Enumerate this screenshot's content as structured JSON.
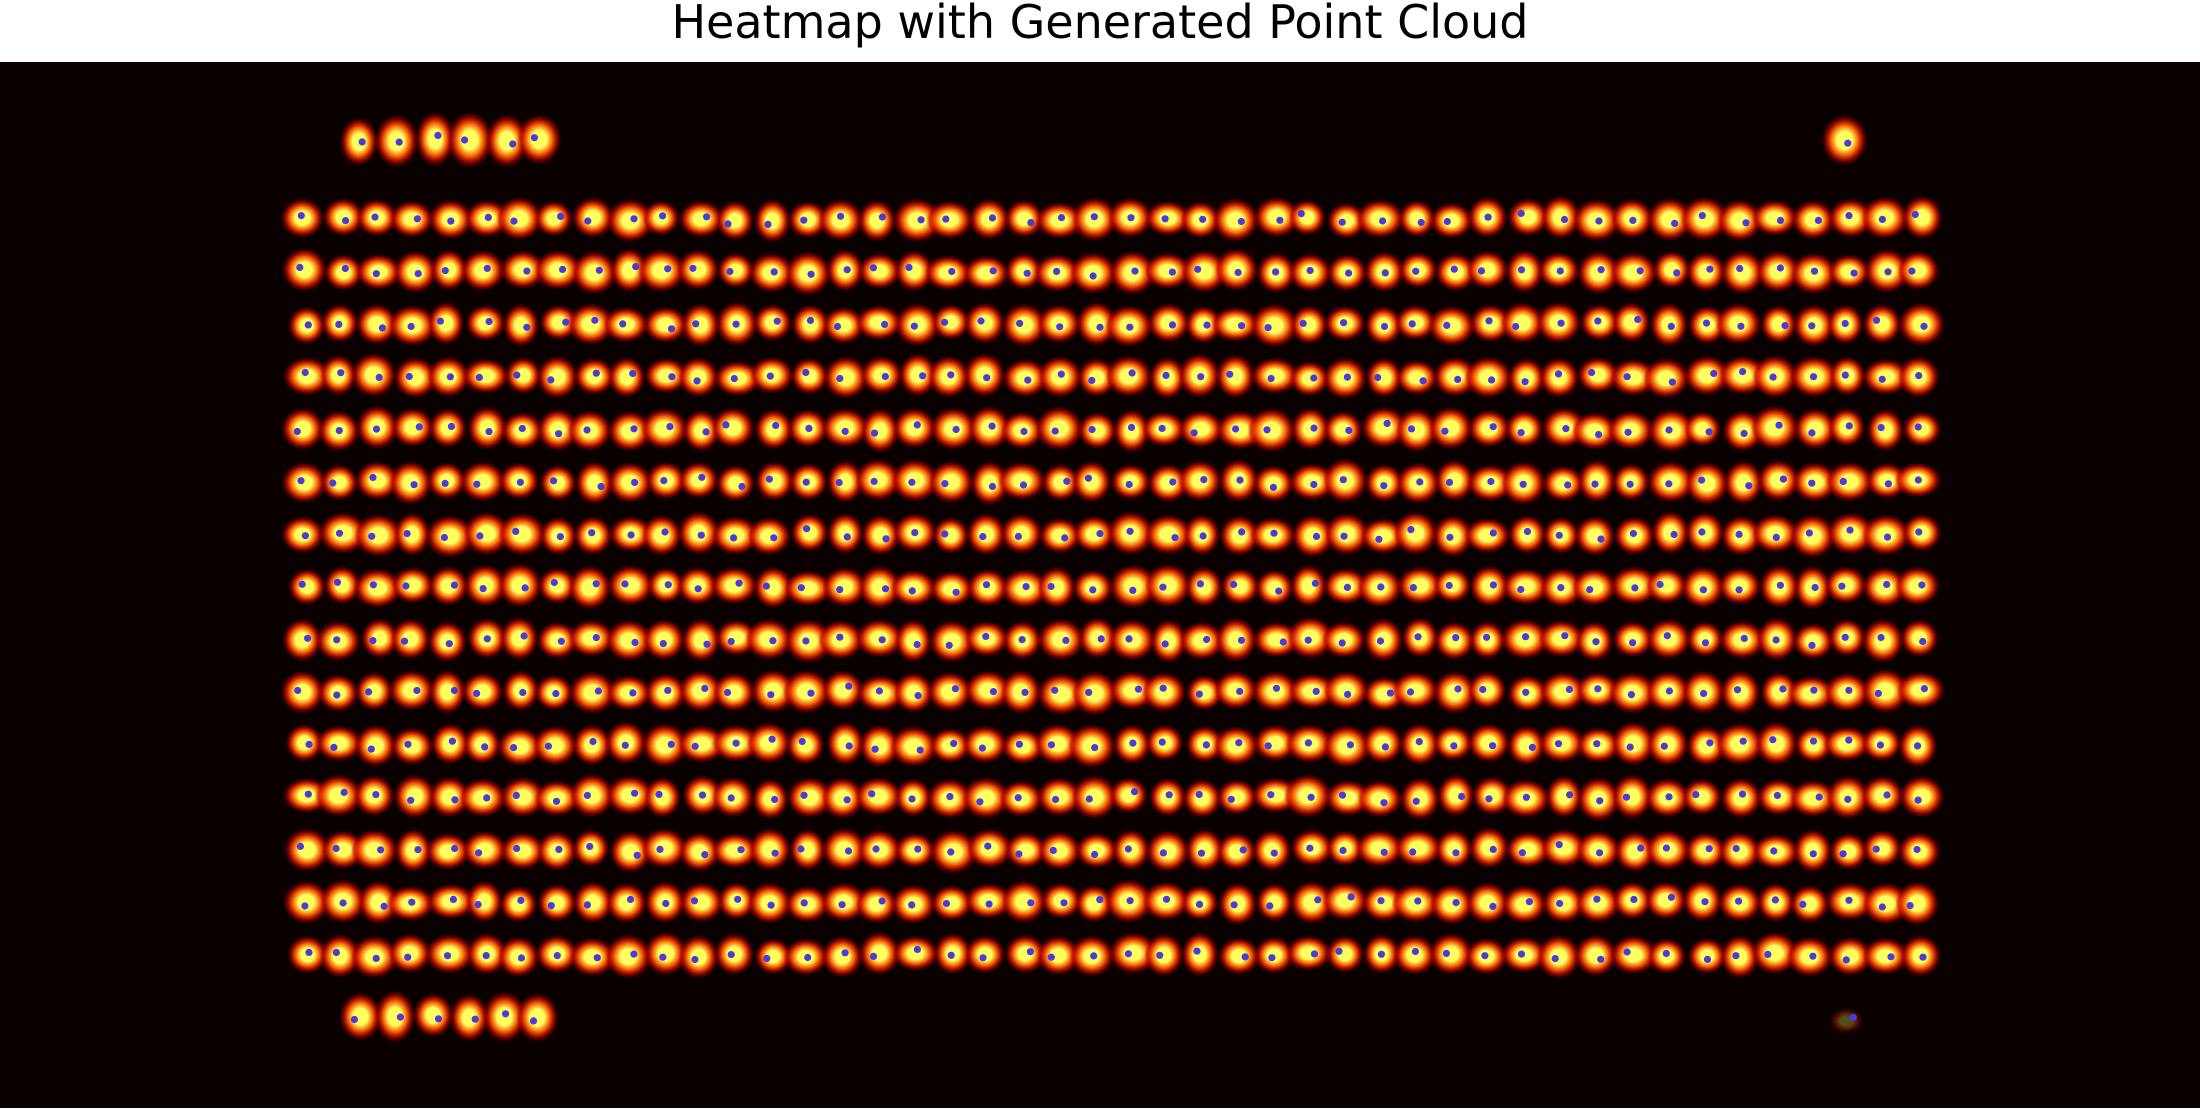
{
  "chart_data": {
    "type": "heatmap",
    "title": "Heatmap with Generated Point Cloud",
    "xlabel": "",
    "ylabel": "",
    "axes_visible": false,
    "grid": false,
    "legend": "none",
    "colormap": "hot",
    "colors": {
      "background": "#0a0000",
      "blob_outer": "#b40000",
      "blob_mid": "#ff5a00",
      "blob_core": "#ffff60",
      "point": "#4b3cd6"
    },
    "series": [
      {
        "values": [
          [
            1,
            1,
            1,
            1,
            1,
            1
          ]
        ]
      },
      {
        "values": [
          [
            1
          ]
        ]
      },
      {
        "values": [
          [
            1,
            1,
            1,
            1,
            1,
            1,
            1,
            1,
            1,
            1,
            1,
            1,
            1,
            1,
            1,
            1,
            1,
            1,
            1,
            1,
            1,
            1,
            1,
            1,
            1,
            1,
            1,
            1,
            1,
            1,
            1,
            1,
            1,
            1,
            1,
            1,
            1,
            1,
            1,
            1,
            1,
            1,
            1,
            1,
            1,
            1
          ],
          [
            1,
            1,
            1,
            1,
            1,
            1,
            1,
            1,
            1,
            1,
            1,
            1,
            1,
            1,
            1,
            1,
            1,
            1,
            1,
            1,
            1,
            1,
            1,
            1,
            1,
            1,
            1,
            1,
            1,
            1,
            1,
            1,
            1,
            1,
            1,
            1,
            1,
            1,
            1,
            1,
            1,
            1,
            1,
            1,
            1,
            1
          ],
          [
            1,
            1,
            1,
            1,
            1,
            1,
            1,
            1,
            1,
            1,
            1,
            1,
            1,
            1,
            1,
            1,
            1,
            1,
            1,
            1,
            1,
            1,
            1,
            1,
            1,
            1,
            1,
            1,
            1,
            1,
            1,
            1,
            1,
            1,
            1,
            1,
            1,
            1,
            1,
            1,
            1,
            1,
            1,
            1,
            1,
            1
          ],
          [
            1,
            1,
            1,
            1,
            1,
            1,
            1,
            1,
            1,
            1,
            1,
            1,
            1,
            1,
            1,
            1,
            1,
            1,
            1,
            1,
            1,
            1,
            1,
            1,
            1,
            1,
            1,
            1,
            1,
            1,
            1,
            1,
            1,
            1,
            1,
            1,
            1,
            1,
            1,
            1,
            1,
            1,
            1,
            1,
            1,
            1
          ],
          [
            1,
            1,
            1,
            1,
            1,
            1,
            1,
            1,
            1,
            1,
            1,
            1,
            1,
            1,
            1,
            1,
            1,
            1,
            1,
            1,
            1,
            1,
            1,
            1,
            1,
            1,
            1,
            1,
            1,
            1,
            1,
            1,
            1,
            1,
            1,
            1,
            1,
            1,
            1,
            1,
            1,
            1,
            1,
            1,
            1,
            1
          ],
          [
            1,
            1,
            1,
            1,
            1,
            1,
            1,
            1,
            1,
            1,
            1,
            1,
            1,
            1,
            1,
            1,
            1,
            1,
            1,
            1,
            1,
            1,
            1,
            1,
            1,
            1,
            1,
            1,
            1,
            1,
            1,
            1,
            1,
            1,
            1,
            1,
            1,
            1,
            1,
            1,
            1,
            1,
            1,
            1,
            1,
            1
          ],
          [
            1,
            1,
            1,
            1,
            1,
            1,
            1,
            1,
            1,
            1,
            1,
            1,
            1,
            1,
            1,
            1,
            1,
            1,
            1,
            1,
            1,
            1,
            1,
            1,
            1,
            1,
            1,
            1,
            1,
            1,
            1,
            1,
            1,
            1,
            1,
            1,
            1,
            1,
            1,
            1,
            1,
            1,
            1,
            1,
            1,
            1
          ],
          [
            1,
            1,
            1,
            1,
            1,
            1,
            1,
            1,
            1,
            1,
            1,
            1,
            1,
            1,
            1,
            1,
            1,
            1,
            1,
            1,
            1,
            1,
            1,
            1,
            1,
            1,
            1,
            1,
            1,
            1,
            1,
            1,
            1,
            1,
            1,
            1,
            1,
            1,
            1,
            1,
            1,
            1,
            1,
            1,
            1,
            1
          ],
          [
            1,
            1,
            1,
            1,
            1,
            1,
            1,
            1,
            1,
            1,
            1,
            1,
            1,
            1,
            1,
            1,
            1,
            1,
            1,
            1,
            1,
            1,
            1,
            1,
            1,
            1,
            1,
            1,
            1,
            1,
            1,
            1,
            1,
            1,
            1,
            1,
            1,
            1,
            1,
            1,
            1,
            1,
            1,
            1,
            1,
            1
          ],
          [
            1,
            1,
            1,
            1,
            1,
            1,
            1,
            1,
            1,
            1,
            1,
            1,
            1,
            1,
            1,
            1,
            1,
            1,
            1,
            1,
            1,
            1,
            1,
            1,
            1,
            1,
            1,
            1,
            1,
            1,
            1,
            1,
            1,
            1,
            1,
            1,
            1,
            1,
            1,
            1,
            1,
            1,
            1,
            1,
            1,
            1
          ],
          [
            1,
            1,
            1,
            1,
            1,
            1,
            1,
            1,
            1,
            1,
            1,
            1,
            1,
            1,
            1,
            1,
            1,
            1,
            1,
            1,
            1,
            1,
            1,
            1,
            1,
            1,
            1,
            1,
            1,
            1,
            1,
            1,
            1,
            1,
            1,
            1,
            1,
            1,
            1,
            1,
            1,
            1,
            1,
            1,
            1,
            1
          ],
          [
            1,
            1,
            1,
            1,
            1,
            1,
            1,
            1,
            1,
            1,
            1,
            1,
            1,
            1,
            1,
            1,
            1,
            1,
            1,
            1,
            1,
            1,
            1,
            1,
            1,
            1,
            1,
            1,
            1,
            1,
            1,
            1,
            1,
            1,
            1,
            1,
            1,
            1,
            1,
            1,
            1,
            1,
            1,
            1,
            1,
            1
          ],
          [
            1,
            1,
            1,
            1,
            1,
            1,
            1,
            1,
            1,
            1,
            1,
            1,
            1,
            1,
            1,
            1,
            1,
            1,
            1,
            1,
            1,
            1,
            1,
            1,
            1,
            1,
            1,
            1,
            1,
            1,
            1,
            1,
            1,
            1,
            1,
            1,
            1,
            1,
            1,
            1,
            1,
            1,
            1,
            1,
            1,
            1
          ],
          [
            1,
            1,
            1,
            1,
            1,
            1,
            1,
            1,
            1,
            1,
            1,
            1,
            1,
            1,
            1,
            1,
            1,
            1,
            1,
            1,
            1,
            1,
            1,
            1,
            1,
            1,
            1,
            1,
            1,
            1,
            1,
            1,
            1,
            1,
            1,
            1,
            1,
            1,
            1,
            1,
            1,
            1,
            1,
            1,
            1,
            1
          ],
          [
            1,
            1,
            1,
            1,
            1,
            1,
            1,
            1,
            1,
            1,
            1,
            1,
            1,
            1,
            1,
            1,
            1,
            1,
            1,
            1,
            1,
            1,
            1,
            1,
            1,
            1,
            1,
            1,
            1,
            1,
            1,
            1,
            1,
            1,
            1,
            1,
            1,
            1,
            1,
            1,
            1,
            1,
            1,
            1,
            1,
            1
          ]
        ]
      },
      {
        "values": [
          [
            1,
            1,
            1,
            1,
            1,
            1
          ]
        ]
      },
      {
        "values": [
          [
            0.3
          ]
        ]
      }
    ]
  }
}
